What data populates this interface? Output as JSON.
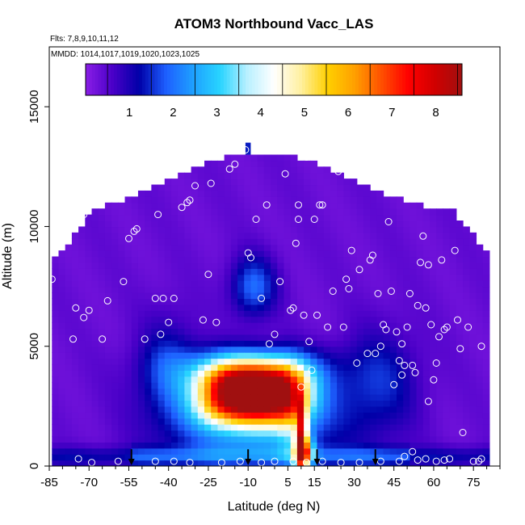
{
  "chart_data": {
    "type": "heatmap",
    "title": "ATOM3 Northbound Vacc_LAS",
    "subtitle_flights": "Flts: 7,8,9,10,11,12",
    "subtitle_dates": "MMDD: 1014,1017,1019,1020,1023,1025",
    "xlabel": "Latitude (deg N)",
    "ylabel": "Altitude (m)",
    "xlim": [
      -85,
      85
    ],
    "ylim": [
      0,
      17500
    ],
    "x_ticks": [
      -85,
      -70,
      -55,
      -40,
      -25,
      -10,
      5,
      15,
      30,
      45,
      60,
      75
    ],
    "x_tick_labels": [
      "-85",
      "-70",
      "-55",
      "-40",
      "-25",
      "-10",
      "5",
      "15",
      "30",
      "45",
      "60",
      "75"
    ],
    "y_ticks": [
      0,
      5000,
      10000,
      15000
    ],
    "y_tick_labels": [
      "0",
      "5000",
      "10000",
      "15000"
    ],
    "colorbar": {
      "min": 0,
      "max": 8.6,
      "ticks": [
        1,
        2,
        3,
        4,
        5,
        6,
        7,
        8
      ],
      "tick_labels": [
        "1",
        "2",
        "3",
        "4",
        "5",
        "6",
        "7",
        "8"
      ],
      "colors": [
        "#8a1ee6",
        "#4a00c8",
        "#0000a8",
        "#1e60ff",
        "#1ea0ff",
        "#28d4ff",
        "#b8f0ff",
        "#ffffff",
        "#fff0a0",
        "#ffd000",
        "#ffa000",
        "#ff5000",
        "#ff0000",
        "#d00000",
        "#a01010"
      ]
    },
    "field_summary": {
      "background_value": 0.3,
      "max_value": 8.2,
      "max_location": {
        "lat": -10,
        "alt": 3200
      },
      "plume_altitude_range": [
        500,
        5000
      ],
      "plume_latitude_range": [
        -45,
        25
      ],
      "secondary_max": {
        "lat": 10,
        "alt": 1000,
        "value": 7.5
      }
    },
    "arrows_lat": [
      -54,
      -10,
      16,
      38
    ],
    "observations": [
      [
        -84,
        7800
      ],
      [
        -76,
        5300
      ],
      [
        -75,
        6600
      ],
      [
        -72,
        6200
      ],
      [
        -70,
        6500
      ],
      [
        -65,
        5300
      ],
      [
        -63,
        6900
      ],
      [
        -74,
        10500
      ],
      [
        -72,
        10500
      ],
      [
        -60,
        11800
      ],
      [
        -57,
        7700
      ],
      [
        -55,
        9500
      ],
      [
        -53,
        9800
      ],
      [
        -52,
        9900
      ],
      [
        -49,
        5300
      ],
      [
        -45,
        7000
      ],
      [
        -44,
        10500
      ],
      [
        -43,
        5500
      ],
      [
        -42,
        7000
      ],
      [
        -40,
        6000
      ],
      [
        -38,
        7000
      ],
      [
        -35,
        10800
      ],
      [
        -33,
        11000
      ],
      [
        -32,
        11100
      ],
      [
        -30,
        11700
      ],
      [
        -27,
        6100
      ],
      [
        -25,
        8000
      ],
      [
        -24,
        11800
      ],
      [
        -22,
        6000
      ],
      [
        -17,
        12400
      ],
      [
        -15,
        12600
      ],
      [
        -11,
        13200
      ],
      [
        -10,
        8900
      ],
      [
        -9,
        8700
      ],
      [
        -7,
        10300
      ],
      [
        -5,
        7000
      ],
      [
        -3,
        10900
      ],
      [
        -2,
        5100
      ],
      [
        0,
        5500
      ],
      [
        2,
        7700
      ],
      [
        4,
        12200
      ],
      [
        6,
        6500
      ],
      [
        7,
        6600
      ],
      [
        8,
        9300
      ],
      [
        9,
        10300
      ],
      [
        9,
        10900
      ],
      [
        10,
        3300
      ],
      [
        11,
        6300
      ],
      [
        12,
        12900
      ],
      [
        13,
        5200
      ],
      [
        14,
        4000
      ],
      [
        15,
        10300
      ],
      [
        16,
        6300
      ],
      [
        17,
        10900
      ],
      [
        18,
        10900
      ],
      [
        20,
        5800
      ],
      [
        22,
        7300
      ],
      [
        24,
        12300
      ],
      [
        26,
        5800
      ],
      [
        27,
        7800
      ],
      [
        28,
        7400
      ],
      [
        29,
        9000
      ],
      [
        31,
        4300
      ],
      [
        32,
        8200
      ],
      [
        35,
        4700
      ],
      [
        36,
        8600
      ],
      [
        37,
        8800
      ],
      [
        38,
        4700
      ],
      [
        39,
        7200
      ],
      [
        40,
        5000
      ],
      [
        41,
        5900
      ],
      [
        42,
        5700
      ],
      [
        43,
        10200
      ],
      [
        44,
        7300
      ],
      [
        45,
        3400
      ],
      [
        46,
        5600
      ],
      [
        47,
        4400
      ],
      [
        48,
        5100
      ],
      [
        48,
        3800
      ],
      [
        49,
        4200
      ],
      [
        50,
        5800
      ],
      [
        51,
        7200
      ],
      [
        52,
        4200
      ],
      [
        53,
        3900
      ],
      [
        54,
        6700
      ],
      [
        55,
        8500
      ],
      [
        56,
        9600
      ],
      [
        57,
        6600
      ],
      [
        58,
        8400
      ],
      [
        58,
        2700
      ],
      [
        59,
        5900
      ],
      [
        60,
        3600
      ],
      [
        61,
        4300
      ],
      [
        62,
        5400
      ],
      [
        63,
        8600
      ],
      [
        64,
        5700
      ],
      [
        65,
        5800
      ],
      [
        68,
        9000
      ],
      [
        69,
        6100
      ],
      [
        70,
        4900
      ],
      [
        71,
        1400
      ],
      [
        73,
        5800
      ],
      [
        75,
        200
      ],
      [
        78,
        5000
      ],
      [
        78,
        300
      ],
      [
        77,
        200
      ],
      [
        -74,
        300
      ],
      [
        -69,
        150
      ],
      [
        -59,
        200
      ],
      [
        -45,
        200
      ],
      [
        -38,
        200
      ],
      [
        -32,
        150
      ],
      [
        -20,
        150
      ],
      [
        -13,
        200
      ],
      [
        -5,
        150
      ],
      [
        0,
        200
      ],
      [
        7,
        200
      ],
      [
        12,
        150
      ],
      [
        18,
        200
      ],
      [
        25,
        150
      ],
      [
        32,
        150
      ],
      [
        40,
        200
      ],
      [
        47,
        200
      ],
      [
        49,
        400
      ],
      [
        52,
        600
      ],
      [
        54,
        250
      ],
      [
        57,
        300
      ],
      [
        61,
        200
      ],
      [
        64,
        250
      ],
      [
        66,
        300
      ]
    ]
  }
}
